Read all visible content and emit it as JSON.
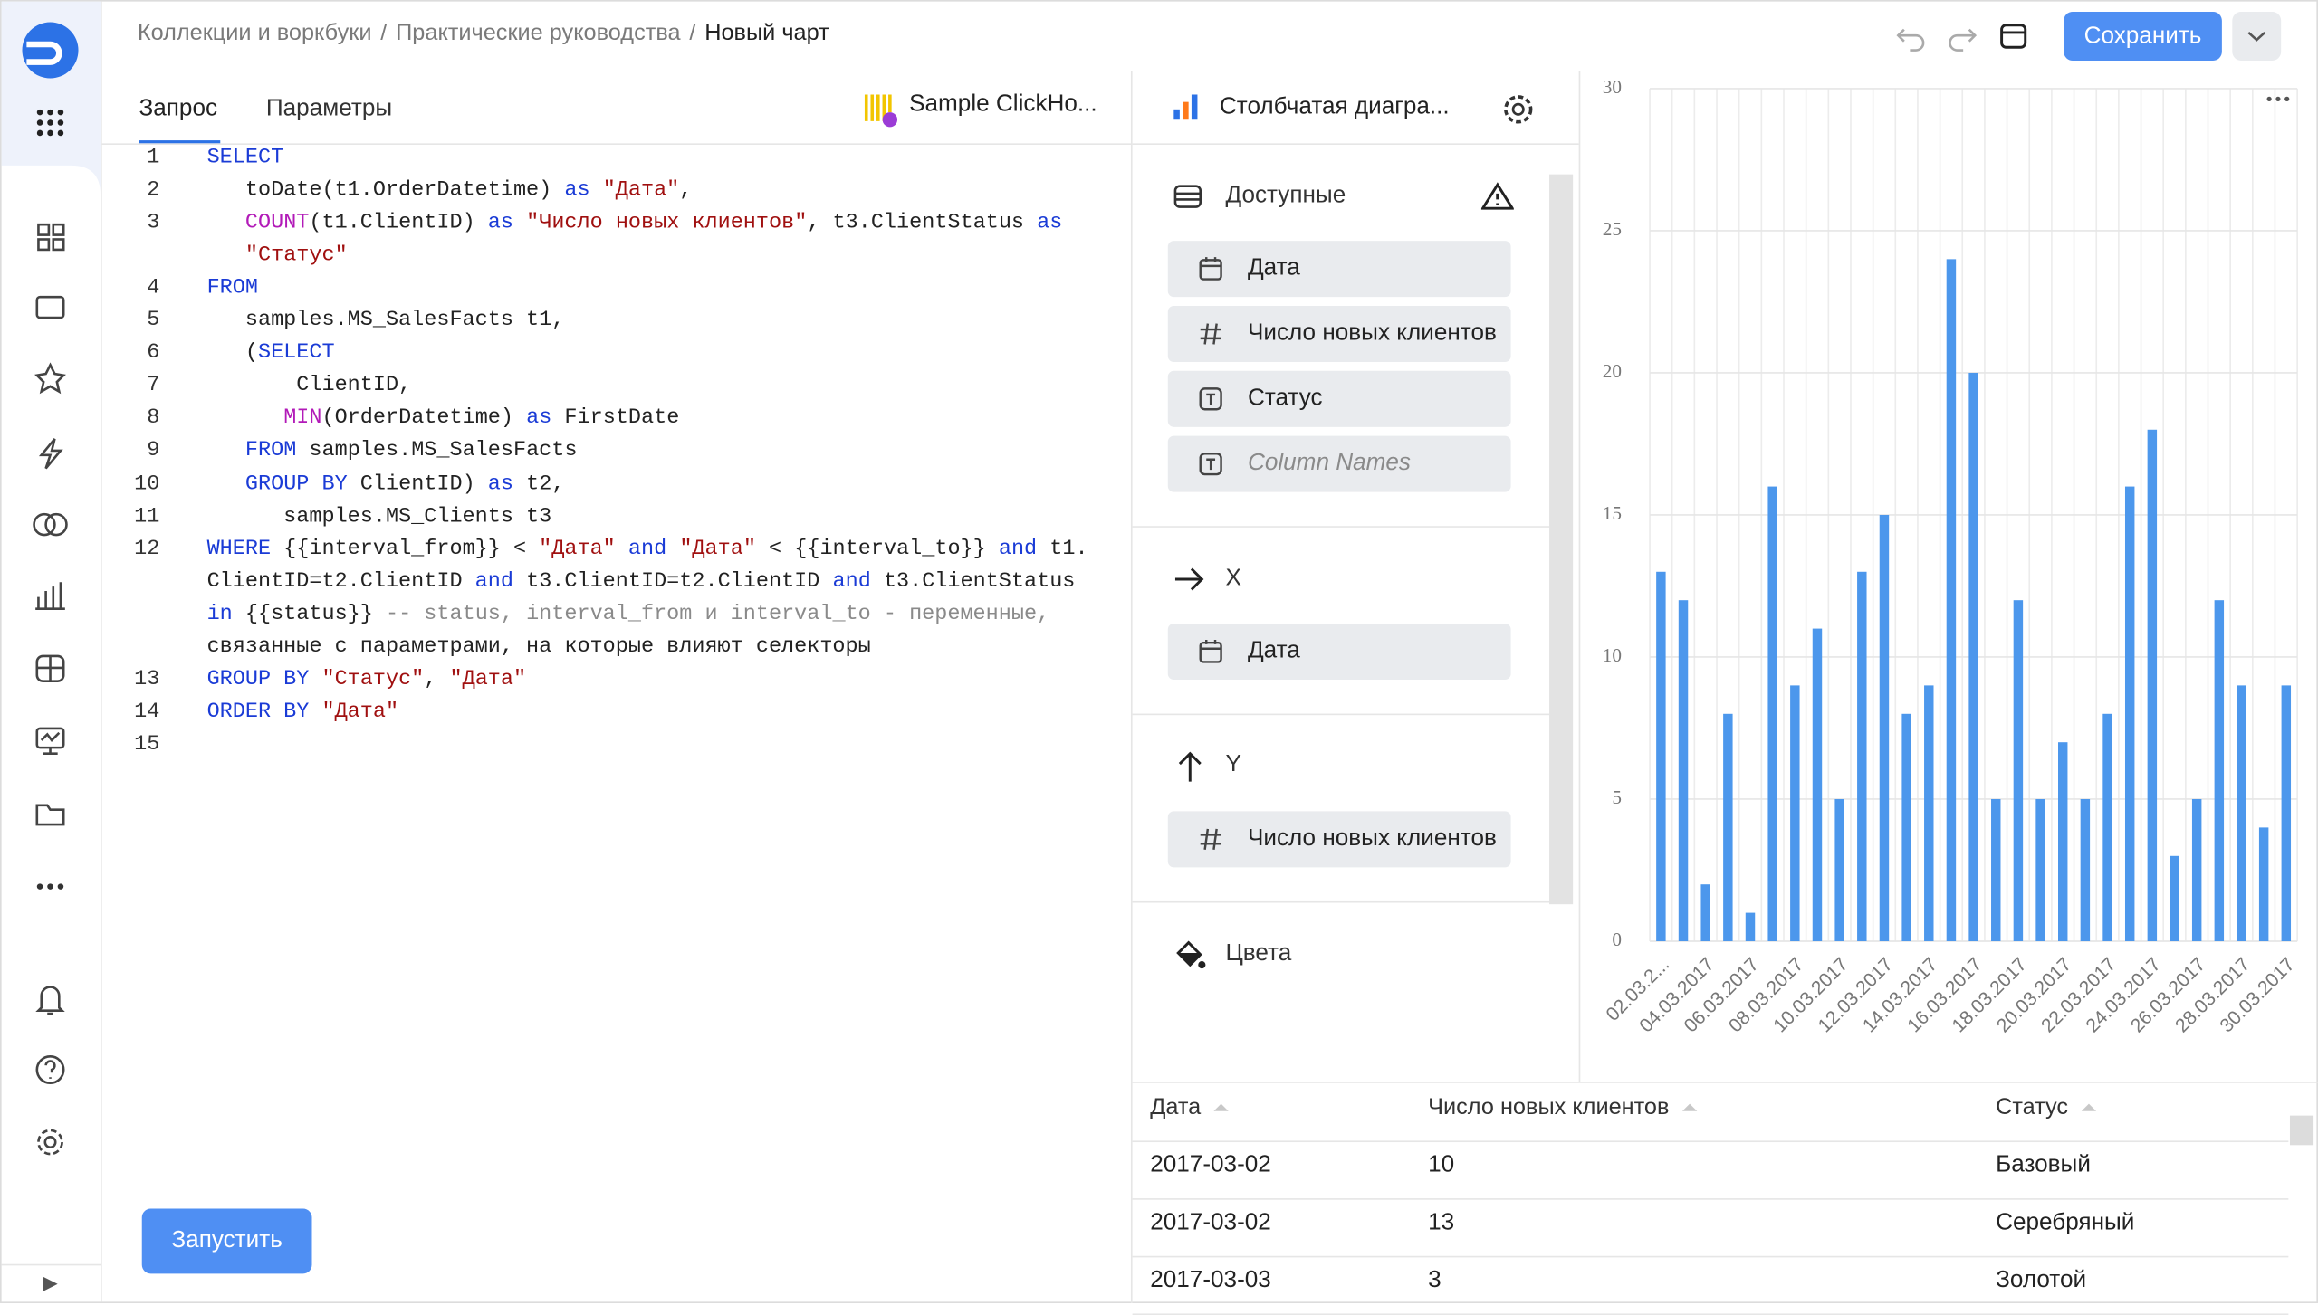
{
  "breadcrumbs": [
    "Коллекции и воркбуки",
    "Практические руководства"
  ],
  "breadcrumb_separator": "/",
  "current_page": "Новый чарт",
  "save_button": "Сохранить",
  "query_panel": {
    "tabs": [
      "Запрос",
      "Параметры"
    ],
    "connection": "Sample ClickHo...",
    "code": [
      {
        "number": 1,
        "rows": [
          "SELECT"
        ]
      },
      {
        "number": 2,
        "rows": [
          "   toDate(t1.OrderDatetime) as \"Дата\","
        ]
      },
      {
        "number": 3,
        "rows": [
          "   COUNT(t1.ClientID) as \"Число новых клиентов\", t3.ClientStatus as",
          "   \"Статус\""
        ]
      },
      {
        "number": 4,
        "rows": [
          "FROM"
        ]
      },
      {
        "number": 5,
        "rows": [
          "   samples.MS_SalesFacts t1,"
        ]
      },
      {
        "number": 6,
        "rows": [
          "   (SELECT"
        ]
      },
      {
        "number": 7,
        "rows": [
          "       ClientID,"
        ]
      },
      {
        "number": 8,
        "rows": [
          "      MIN(OrderDatetime) as FirstDate"
        ]
      },
      {
        "number": 9,
        "rows": [
          "   FROM samples.MS_SalesFacts"
        ]
      },
      {
        "number": 10,
        "rows": [
          "   GROUP BY ClientID) as t2,"
        ]
      },
      {
        "number": 11,
        "rows": [
          "      samples.MS_Clients t3"
        ]
      },
      {
        "number": 12,
        "rows": [
          "WHERE {{interval_from}} < \"Дата\" and \"Дата\" < {{interval_to}} and t1.",
          "ClientID=t2.ClientID and t3.ClientID=t2.ClientID and t3.ClientStatus",
          "in {{status}} -- status, interval_from и interval_to - переменные,",
          "связанные с параметрами, на которые влияют селекторы"
        ]
      },
      {
        "number": 13,
        "rows": [
          "GROUP BY \"Статус\", \"Дата\""
        ]
      },
      {
        "number": 14,
        "rows": [
          "ORDER BY \"Дата\""
        ]
      },
      {
        "number": 15,
        "rows": []
      }
    ],
    "run_button": "Запустить"
  },
  "wizard": {
    "chart_type": "Столбчатая диагра...",
    "available_title": "Доступные",
    "available_fields": [
      "Дата",
      "Число новых клиентов",
      "Статус",
      "Column Names"
    ],
    "x_title": "X",
    "x_fields": [
      "Дата"
    ],
    "y_title": "Y",
    "y_fields": [
      "Число новых клиентов"
    ],
    "colors_title": "Цвета"
  },
  "chart_data": {
    "type": "bar",
    "categories": [
      "02.03.2...",
      null,
      "04.03.2017",
      null,
      "06.03.2017",
      null,
      "08.03.2017",
      null,
      "10.03.2017",
      null,
      "12.03.2017",
      null,
      "14.03.2017",
      null,
      "16.03.2017",
      null,
      "18.03.2017",
      null,
      "20.03.2017",
      null,
      "22.03.2017",
      null,
      "24.03.2017",
      null,
      "26.03.2017",
      null,
      "28.03.2017",
      null,
      "30.03.2017"
    ],
    "values": [
      13,
      12,
      2,
      8,
      1,
      16,
      9,
      11,
      5,
      13,
      15,
      8,
      9,
      24,
      20,
      5,
      12,
      5,
      7,
      5,
      8,
      16,
      18,
      3,
      5,
      12,
      9,
      4,
      9
    ],
    "color": "#4c97ec",
    "ylim": [
      0,
      30
    ],
    "yticks": [
      0,
      5,
      10,
      15,
      20,
      25,
      30
    ],
    "grid": true
  },
  "table": {
    "columns": [
      "Дата",
      "Число новых клиентов",
      "Статус"
    ],
    "rows": [
      [
        "2017-03-02",
        10,
        "Базовый"
      ],
      [
        "2017-03-02",
        13,
        "Серебряный"
      ],
      [
        "2017-03-03",
        3,
        "Золотой"
      ]
    ]
  }
}
